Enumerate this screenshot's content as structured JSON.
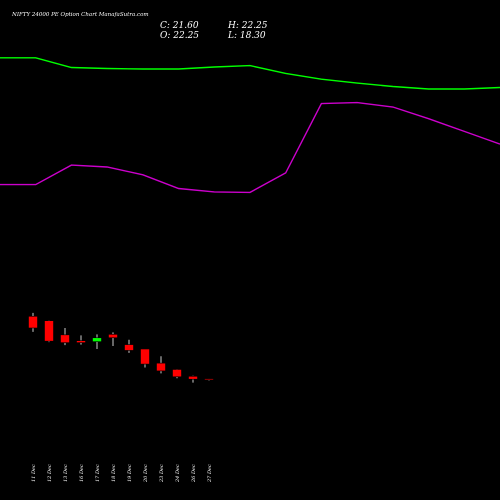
{
  "header": {
    "title": "NIFTY 24000  PE Option  Chart ManafaSutra.com",
    "close_label": "C: 21.60",
    "high_label": "H: 22.25",
    "open_label": "O: 22.25",
    "low_label": "L: 18.30"
  },
  "colors": {
    "background": "#000000",
    "bull": "#00ff00",
    "bear": "#ff0000",
    "wick": "#cccccc",
    "upper_line": "#00ff00",
    "lower_line": "#cc00cc",
    "text": "#ffffff"
  },
  "chart_data": {
    "type": "candlestick",
    "categories": [
      "11 Dec",
      "12 Dec",
      "13 Dec",
      "16 Dec",
      "17 Dec",
      "18 Dec",
      "19 Dec",
      "20 Dec",
      "23 Dec",
      "24 Dec",
      "26 Dec",
      "27 Dec"
    ],
    "ohlc": [
      {
        "open": 150,
        "high": 157,
        "low": 118,
        "close": 126
      },
      {
        "open": 141,
        "high": 142,
        "low": 97,
        "close": 99
      },
      {
        "open": 112,
        "high": 126,
        "low": 91,
        "close": 96
      },
      {
        "open": 100,
        "high": 111,
        "low": 92,
        "close": 96
      },
      {
        "open": 98,
        "high": 113,
        "low": 83,
        "close": 106
      },
      {
        "open": 113,
        "high": 117,
        "low": 89,
        "close": 106
      },
      {
        "open": 92,
        "high": 102,
        "low": 75,
        "close": 80
      },
      {
        "open": 83,
        "high": 83,
        "low": 45,
        "close": 52
      },
      {
        "open": 54,
        "high": 68,
        "low": 33,
        "close": 38
      },
      {
        "open": 41,
        "high": 42,
        "low": 23,
        "close": 26
      },
      {
        "open": 27,
        "high": 28,
        "low": 14,
        "close": 21
      },
      {
        "open": 22.25,
        "high": 22.25,
        "low": 18.3,
        "close": 21.6
      }
    ],
    "overlay_series": [
      {
        "values": [
          680,
          680,
          660,
          658,
          657,
          657,
          661,
          664,
          648,
          636,
          628,
          621,
          616,
          616,
          619
        ]
      },
      {
        "values": [
          420,
          420,
          460,
          456,
          440,
          412,
          405,
          404,
          444,
          586,
          588,
          579,
          555,
          529,
          503
        ]
      }
    ],
    "ylim": [
      -120,
      700
    ],
    "grid": false
  }
}
